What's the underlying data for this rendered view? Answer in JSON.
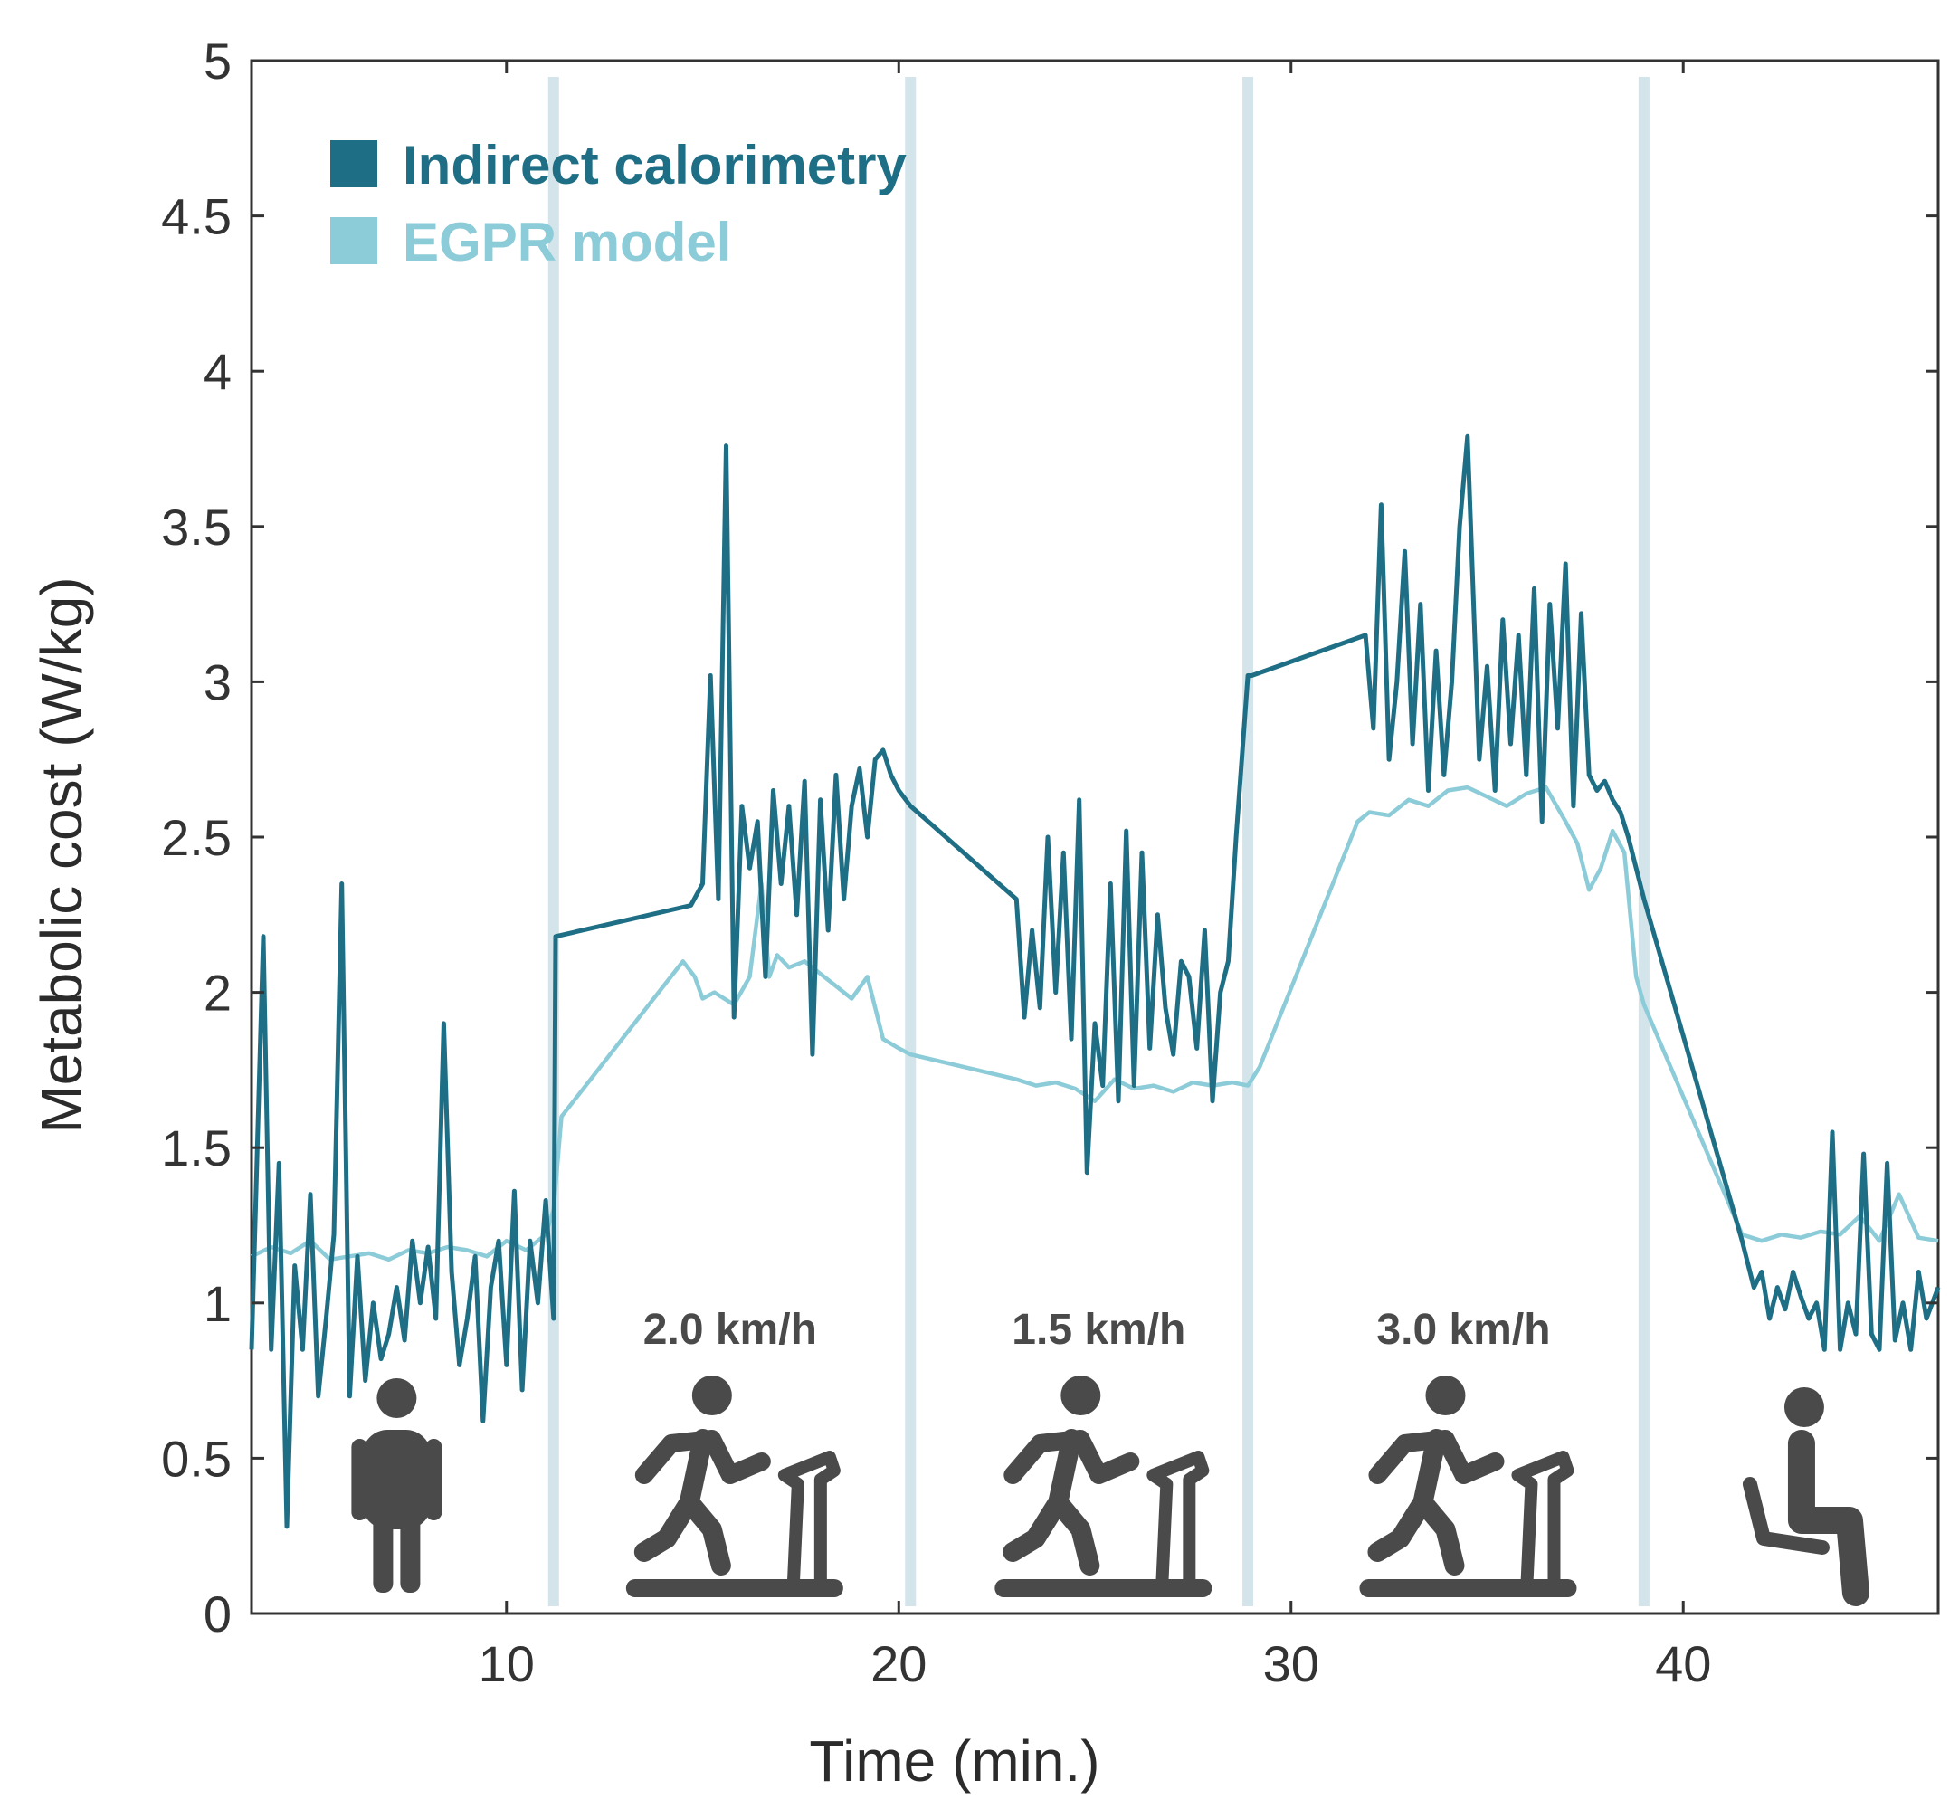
{
  "chart_data": {
    "type": "line",
    "xlabel": "Time (min.)",
    "ylabel": "Metabolic cost (W/kg)",
    "xlim": [
      3.5,
      46.5
    ],
    "ylim": [
      0,
      5
    ],
    "xticks": [
      10,
      20,
      30,
      40
    ],
    "xtick_labels": [
      "10",
      "20",
      "30",
      "40"
    ],
    "yticks": [
      0,
      0.5,
      1,
      1.5,
      2,
      2.5,
      3,
      3.5,
      4,
      4.5,
      5
    ],
    "ytick_labels": [
      "0",
      "0.5",
      "1",
      "1.5",
      "2",
      "2.5",
      "3",
      "3.5",
      "4",
      "4.5",
      "5"
    ],
    "colors": {
      "indirect": "#1e6f85",
      "egpr": "#8ccbd8",
      "phase_line": "#d3e4ea",
      "axis": "#333333",
      "icon": "#4a4a4a"
    },
    "legend": [
      {
        "label": "Indirect calorimetry",
        "color": "#1e6f85"
      },
      {
        "label": "EGPR model",
        "color": "#8ccbd8"
      }
    ],
    "phase_boundaries": [
      11.2,
      20.3,
      28.9,
      39.0
    ],
    "phases": [
      {
        "name": "standing",
        "icon": "standing-person-icon",
        "label": "",
        "x_center": 7.2
      },
      {
        "name": "walk-2.0",
        "icon": "treadmill-walker-icon",
        "label": "2.0 km/h",
        "x_center": 15.7
      },
      {
        "name": "walk-1.5",
        "icon": "treadmill-walker-icon",
        "label": "1.5 km/h",
        "x_center": 25.1
      },
      {
        "name": "walk-3.0",
        "icon": "treadmill-walker-icon",
        "label": "3.0 km/h",
        "x_center": 34.4
      },
      {
        "name": "sitting",
        "icon": "sitting-person-icon",
        "label": "",
        "x_center": 43.2
      }
    ],
    "series": [
      {
        "name": "Indirect calorimetry",
        "x": [
          3.5,
          3.8,
          4.0,
          4.2,
          4.4,
          4.6,
          4.8,
          5.0,
          5.2,
          5.4,
          5.6,
          5.8,
          6.0,
          6.2,
          6.4,
          6.6,
          6.8,
          7.0,
          7.2,
          7.4,
          7.6,
          7.8,
          8.0,
          8.2,
          8.4,
          8.6,
          8.8,
          9.0,
          9.2,
          9.4,
          9.6,
          9.8,
          10.0,
          10.2,
          10.4,
          10.6,
          10.8,
          11.0,
          11.2,
          11.25,
          14.7,
          15.0,
          15.2,
          15.4,
          15.6,
          15.8,
          16.0,
          16.2,
          16.4,
          16.6,
          16.8,
          17.0,
          17.2,
          17.4,
          17.6,
          17.8,
          18.0,
          18.2,
          18.4,
          18.6,
          18.8,
          19.0,
          19.2,
          19.4,
          19.6,
          19.8,
          20.0,
          20.3,
          23.0,
          23.2,
          23.4,
          23.6,
          23.8,
          24.0,
          24.2,
          24.4,
          24.6,
          24.8,
          25.0,
          25.2,
          25.4,
          25.6,
          25.8,
          26.0,
          26.2,
          26.4,
          26.6,
          26.8,
          27.0,
          27.2,
          27.4,
          27.6,
          27.8,
          28.0,
          28.2,
          28.4,
          28.6,
          28.9,
          29.0,
          31.9,
          32.1,
          32.3,
          32.5,
          32.7,
          32.9,
          33.1,
          33.3,
          33.5,
          33.7,
          33.9,
          34.1,
          34.3,
          34.5,
          34.8,
          35.0,
          35.2,
          35.4,
          35.6,
          35.8,
          36.0,
          36.2,
          36.4,
          36.6,
          36.8,
          37.0,
          37.2,
          37.4,
          37.6,
          37.8,
          38.0,
          38.2,
          38.4,
          38.6,
          39.0,
          41.5,
          41.8,
          42.0,
          42.2,
          42.4,
          42.6,
          42.8,
          43.0,
          43.2,
          43.4,
          43.6,
          43.8,
          44.0,
          44.2,
          44.4,
          44.6,
          44.8,
          45.0,
          45.2,
          45.4,
          45.6,
          45.8,
          46.0,
          46.2,
          46.5
        ],
        "values": [
          0.85,
          2.18,
          0.85,
          1.45,
          0.28,
          1.12,
          0.85,
          1.35,
          0.7,
          0.95,
          1.22,
          2.35,
          0.7,
          1.15,
          0.75,
          1.0,
          0.82,
          0.9,
          1.05,
          0.88,
          1.2,
          1.0,
          1.18,
          0.95,
          1.9,
          1.1,
          0.8,
          0.95,
          1.15,
          0.62,
          1.05,
          1.2,
          0.8,
          1.36,
          0.72,
          1.2,
          1.0,
          1.33,
          0.95,
          2.18,
          2.28,
          2.35,
          3.02,
          2.3,
          3.76,
          1.92,
          2.6,
          2.4,
          2.55,
          2.05,
          2.65,
          2.35,
          2.6,
          2.25,
          2.68,
          1.8,
          2.62,
          2.2,
          2.7,
          2.3,
          2.6,
          2.72,
          2.5,
          2.75,
          2.78,
          2.7,
          2.65,
          2.6,
          2.3,
          1.92,
          2.2,
          1.95,
          2.5,
          2.0,
          2.45,
          1.85,
          2.62,
          1.42,
          1.9,
          1.7,
          2.35,
          1.65,
          2.52,
          1.7,
          2.45,
          1.82,
          2.25,
          1.95,
          1.8,
          2.1,
          2.05,
          1.82,
          2.2,
          1.65,
          2.0,
          2.1,
          2.5,
          3.02,
          3.02,
          3.15,
          2.85,
          3.57,
          2.75,
          3.0,
          3.42,
          2.8,
          3.25,
          2.65,
          3.1,
          2.7,
          3.0,
          3.5,
          3.79,
          2.75,
          3.05,
          2.65,
          3.2,
          2.8,
          3.15,
          2.7,
          3.3,
          2.55,
          3.25,
          2.85,
          3.38,
          2.6,
          3.22,
          2.7,
          2.65,
          2.68,
          2.62,
          2.58,
          2.5,
          2.3,
          1.2,
          1.05,
          1.1,
          0.95,
          1.05,
          0.98,
          1.1,
          1.02,
          0.95,
          1.0,
          0.85,
          1.55,
          0.85,
          1.0,
          0.9,
          1.48,
          0.9,
          0.85,
          1.45,
          0.88,
          1.0,
          0.85,
          1.1,
          0.95,
          1.05
        ]
      },
      {
        "name": "EGPR model",
        "x": [
          3.5,
          4.0,
          4.5,
          5.0,
          5.5,
          6.0,
          6.5,
          7.0,
          7.5,
          8.0,
          8.5,
          9.0,
          9.5,
          10.0,
          10.5,
          11.0,
          11.2,
          11.4,
          14.0,
          14.5,
          14.8,
          15.0,
          15.3,
          15.8,
          16.2,
          16.5,
          16.7,
          16.9,
          17.2,
          17.6,
          18.0,
          18.4,
          18.8,
          19.2,
          19.6,
          20.0,
          20.3,
          23.0,
          23.5,
          24.0,
          24.5,
          25.0,
          25.5,
          26.0,
          26.5,
          27.0,
          27.5,
          28.0,
          28.5,
          28.9,
          29.2,
          31.7,
          32.0,
          32.5,
          33.0,
          33.5,
          34.0,
          34.5,
          35.0,
          35.5,
          36.0,
          36.5,
          37.0,
          37.3,
          37.6,
          37.9,
          38.2,
          38.5,
          38.8,
          39.0,
          41.5,
          42.0,
          42.5,
          43.0,
          43.5,
          44.0,
          44.5,
          45.0,
          45.5,
          46.0,
          46.5
        ],
        "values": [
          1.15,
          1.18,
          1.16,
          1.2,
          1.14,
          1.15,
          1.16,
          1.14,
          1.17,
          1.16,
          1.18,
          1.17,
          1.15,
          1.2,
          1.17,
          1.22,
          1.3,
          1.6,
          2.02,
          2.1,
          2.05,
          1.98,
          2.0,
          1.96,
          2.05,
          2.35,
          2.05,
          2.12,
          2.08,
          2.1,
          2.06,
          2.02,
          1.98,
          2.05,
          1.85,
          1.82,
          1.8,
          1.72,
          1.7,
          1.71,
          1.69,
          1.65,
          1.72,
          1.69,
          1.7,
          1.68,
          1.71,
          1.7,
          1.71,
          1.7,
          1.76,
          2.55,
          2.58,
          2.57,
          2.62,
          2.6,
          2.65,
          2.66,
          2.63,
          2.6,
          2.64,
          2.66,
          2.55,
          2.48,
          2.33,
          2.4,
          2.52,
          2.45,
          2.05,
          1.96,
          1.22,
          1.2,
          1.22,
          1.21,
          1.23,
          1.22,
          1.28,
          1.2,
          1.35,
          1.21,
          1.2
        ]
      }
    ]
  }
}
